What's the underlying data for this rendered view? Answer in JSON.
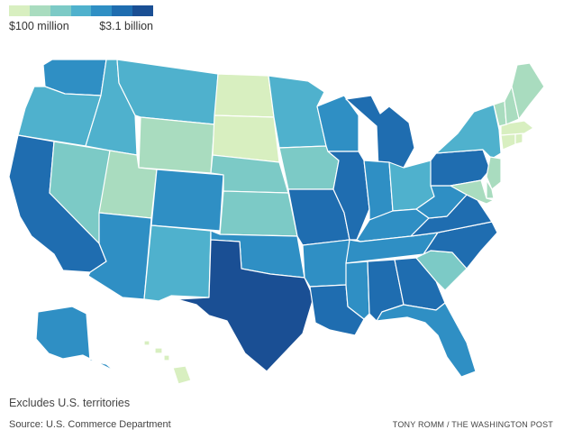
{
  "legend": {
    "min_label": "$100 million",
    "max_label": "$3.1 billion",
    "colors": [
      "#d8efc0",
      "#a9dcbf",
      "#7ccac6",
      "#4fb1cd",
      "#2f8fc4",
      "#1f6db0",
      "#1a4f94"
    ]
  },
  "footnote": "Excludes U.S. territories",
  "source": "Source: U.S. Commerce Department",
  "credit": "TONY ROMM / THE WASHINGTON POST",
  "map": {
    "states": [
      {
        "id": "WA",
        "level": 4
      },
      {
        "id": "OR",
        "level": 3
      },
      {
        "id": "CA",
        "level": 5
      },
      {
        "id": "NV",
        "level": 2
      },
      {
        "id": "ID",
        "level": 3
      },
      {
        "id": "MT",
        "level": 3
      },
      {
        "id": "WY",
        "level": 1
      },
      {
        "id": "UT",
        "level": 1
      },
      {
        "id": "CO",
        "level": 4
      },
      {
        "id": "AZ",
        "level": 4
      },
      {
        "id": "NM",
        "level": 3
      },
      {
        "id": "ND",
        "level": 0
      },
      {
        "id": "SD",
        "level": 0
      },
      {
        "id": "NE",
        "level": 2
      },
      {
        "id": "KS",
        "level": 2
      },
      {
        "id": "OK",
        "level": 4
      },
      {
        "id": "TX",
        "level": 6
      },
      {
        "id": "MN",
        "level": 3
      },
      {
        "id": "IA",
        "level": 2
      },
      {
        "id": "MO",
        "level": 5
      },
      {
        "id": "AR",
        "level": 4
      },
      {
        "id": "LA",
        "level": 5
      },
      {
        "id": "WI",
        "level": 4
      },
      {
        "id": "IL",
        "level": 5
      },
      {
        "id": "MI",
        "level": 5
      },
      {
        "id": "IN",
        "level": 4
      },
      {
        "id": "OH",
        "level": 3
      },
      {
        "id": "KY",
        "level": 4
      },
      {
        "id": "TN",
        "level": 4
      },
      {
        "id": "MS",
        "level": 4
      },
      {
        "id": "AL",
        "level": 5
      },
      {
        "id": "GA",
        "level": 5
      },
      {
        "id": "FL",
        "level": 4
      },
      {
        "id": "SC",
        "level": 2
      },
      {
        "id": "NC",
        "level": 5
      },
      {
        "id": "VA",
        "level": 5
      },
      {
        "id": "WV",
        "level": 4
      },
      {
        "id": "PA",
        "level": 5
      },
      {
        "id": "NY",
        "level": 3
      },
      {
        "id": "NJ",
        "level": 1
      },
      {
        "id": "DE",
        "level": 1
      },
      {
        "id": "MD",
        "level": 1
      },
      {
        "id": "CT",
        "level": 0
      },
      {
        "id": "RI",
        "level": 0
      },
      {
        "id": "MA",
        "level": 0
      },
      {
        "id": "VT",
        "level": 1
      },
      {
        "id": "NH",
        "level": 1
      },
      {
        "id": "ME",
        "level": 1
      },
      {
        "id": "AK",
        "level": 4
      },
      {
        "id": "HI",
        "level": 0
      }
    ]
  }
}
